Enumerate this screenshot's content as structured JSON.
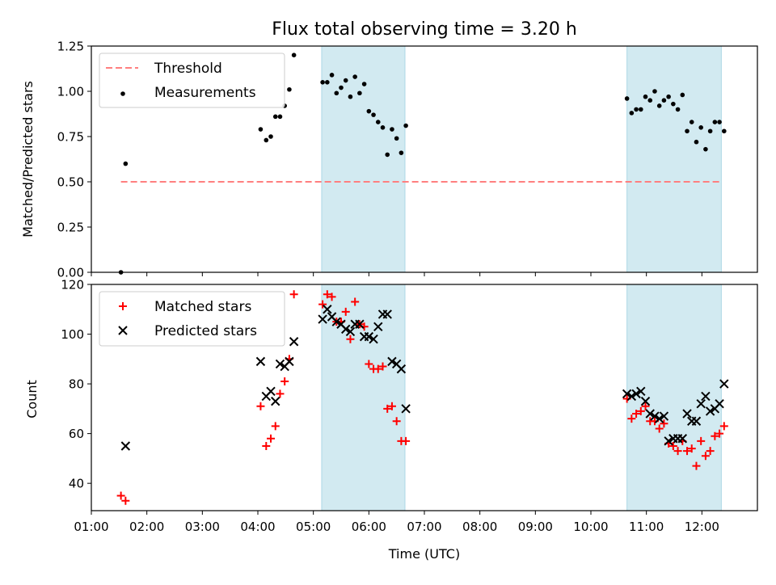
{
  "figure": {
    "title": "Flux total observing time = 3.20 h",
    "xlabel": "Time (UTC)"
  },
  "chart_data": [
    {
      "type": "scatter",
      "panel": "top",
      "title": "Flux total observing time = 3.20 h",
      "xlabel": "",
      "ylabel": "Matched/Predicted stars",
      "xlim": [
        "01:00",
        "13:00"
      ],
      "ylim": [
        0,
        1.25
      ],
      "yticks": [
        "0.00",
        "0.25",
        "0.50",
        "0.75",
        "1.00",
        "1.25"
      ],
      "xticks": [
        "01:00",
        "02:00",
        "03:00",
        "04:00",
        "05:00",
        "06:00",
        "07:00",
        "08:00",
        "09:00",
        "10:00",
        "11:00",
        "12:00"
      ],
      "shaded_intervals": [
        [
          "05:09",
          "06:39"
        ],
        [
          "10:39",
          "12:21"
        ]
      ],
      "shade_color": "#add8e6",
      "legend_position": "upper left",
      "threshold": {
        "name": "Threshold",
        "value": 0.5,
        "x_range": [
          "01:32",
          "12:22"
        ],
        "color": "#ff7f7f",
        "style": "dashed"
      },
      "series": [
        {
          "name": "Measurements",
          "marker": "dot",
          "color": "#000000",
          "points": [
            [
              "01:32",
              0.0
            ],
            [
              "01:37",
              0.6
            ],
            [
              "04:03",
              0.79
            ],
            [
              "04:09",
              0.73
            ],
            [
              "04:14",
              0.75
            ],
            [
              "04:19",
              0.86
            ],
            [
              "04:24",
              0.86
            ],
            [
              "04:29",
              0.92
            ],
            [
              "04:34",
              1.01
            ],
            [
              "04:39",
              1.2
            ],
            [
              "05:10",
              1.05
            ],
            [
              "05:15",
              1.05
            ],
            [
              "05:20",
              1.09
            ],
            [
              "05:25",
              0.99
            ],
            [
              "05:30",
              1.02
            ],
            [
              "05:35",
              1.06
            ],
            [
              "05:40",
              0.97
            ],
            [
              "05:45",
              1.08
            ],
            [
              "05:50",
              0.99
            ],
            [
              "05:55",
              1.04
            ],
            [
              "06:00",
              0.89
            ],
            [
              "06:05",
              0.87
            ],
            [
              "06:10",
              0.83
            ],
            [
              "06:15",
              0.8
            ],
            [
              "06:20",
              0.65
            ],
            [
              "06:25",
              0.79
            ],
            [
              "06:30",
              0.74
            ],
            [
              "06:35",
              0.66
            ],
            [
              "06:40",
              0.81
            ],
            [
              "10:39",
              0.96
            ],
            [
              "10:44",
              0.88
            ],
            [
              "10:49",
              0.9
            ],
            [
              "10:54",
              0.9
            ],
            [
              "10:59",
              0.97
            ],
            [
              "11:04",
              0.95
            ],
            [
              "11:09",
              1.0
            ],
            [
              "11:14",
              0.92
            ],
            [
              "11:19",
              0.95
            ],
            [
              "11:24",
              0.97
            ],
            [
              "11:29",
              0.93
            ],
            [
              "11:34",
              0.9
            ],
            [
              "11:39",
              0.98
            ],
            [
              "11:44",
              0.78
            ],
            [
              "11:49",
              0.83
            ],
            [
              "11:54",
              0.72
            ],
            [
              "11:59",
              0.8
            ],
            [
              "12:04",
              0.68
            ],
            [
              "12:09",
              0.78
            ],
            [
              "12:14",
              0.83
            ],
            [
              "12:19",
              0.83
            ],
            [
              "12:24",
              0.78
            ]
          ]
        }
      ]
    },
    {
      "type": "scatter",
      "panel": "bottom",
      "xlabel": "Time (UTC)",
      "ylabel": "Count",
      "xlim": [
        "01:00",
        "13:00"
      ],
      "ylim": [
        29,
        120
      ],
      "yticks": [
        "40",
        "60",
        "80",
        "100",
        "120"
      ],
      "xticks": [
        "01:00",
        "02:00",
        "03:00",
        "04:00",
        "05:00",
        "06:00",
        "07:00",
        "08:00",
        "09:00",
        "10:00",
        "11:00",
        "12:00"
      ],
      "shaded_intervals": [
        [
          "05:09",
          "06:39"
        ],
        [
          "10:39",
          "12:21"
        ]
      ],
      "shade_color": "#add8e6",
      "legend_position": "upper left",
      "series": [
        {
          "name": "Matched stars",
          "marker": "plus",
          "color": "#ff0000",
          "points": [
            [
              "01:32",
              35
            ],
            [
              "01:37",
              33
            ],
            [
              "04:03",
              71
            ],
            [
              "04:09",
              55
            ],
            [
              "04:14",
              58
            ],
            [
              "04:19",
              63
            ],
            [
              "04:24",
              76
            ],
            [
              "04:29",
              81
            ],
            [
              "04:34",
              90
            ],
            [
              "04:39",
              116
            ],
            [
              "05:10",
              112
            ],
            [
              "05:15",
              116
            ],
            [
              "05:20",
              115
            ],
            [
              "05:25",
              105
            ],
            [
              "05:30",
              105
            ],
            [
              "05:35",
              109
            ],
            [
              "05:40",
              98
            ],
            [
              "05:45",
              113
            ],
            [
              "05:50",
              104
            ],
            [
              "05:55",
              103
            ],
            [
              "06:00",
              88
            ],
            [
              "06:05",
              86
            ],
            [
              "06:10",
              86
            ],
            [
              "06:15",
              87
            ],
            [
              "06:20",
              70
            ],
            [
              "06:25",
              71
            ],
            [
              "06:30",
              65
            ],
            [
              "06:35",
              57
            ],
            [
              "06:40",
              57
            ],
            [
              "10:39",
              74
            ],
            [
              "10:44",
              66
            ],
            [
              "10:49",
              68
            ],
            [
              "10:54",
              69
            ],
            [
              "10:59",
              71
            ],
            [
              "11:04",
              65
            ],
            [
              "11:09",
              65
            ],
            [
              "11:14",
              62
            ],
            [
              "11:19",
              64
            ],
            [
              "11:24",
              56
            ],
            [
              "11:29",
              55
            ],
            [
              "11:34",
              53
            ],
            [
              "11:39",
              57
            ],
            [
              "11:44",
              53
            ],
            [
              "11:49",
              54
            ],
            [
              "11:54",
              47
            ],
            [
              "11:59",
              57
            ],
            [
              "12:04",
              51
            ],
            [
              "12:09",
              53
            ],
            [
              "12:14",
              59
            ],
            [
              "12:19",
              60
            ],
            [
              "12:24",
              63
            ]
          ]
        },
        {
          "name": "Predicted stars",
          "marker": "x",
          "color": "#000000",
          "points": [
            [
              "01:37",
              55
            ],
            [
              "04:03",
              89
            ],
            [
              "04:09",
              75
            ],
            [
              "04:14",
              77
            ],
            [
              "04:19",
              73
            ],
            [
              "04:24",
              88
            ],
            [
              "04:29",
              87
            ],
            [
              "04:34",
              89
            ],
            [
              "04:39",
              97
            ],
            [
              "05:10",
              106
            ],
            [
              "05:15",
              110
            ],
            [
              "05:20",
              107
            ],
            [
              "05:25",
              105
            ],
            [
              "05:30",
              104
            ],
            [
              "05:35",
              102
            ],
            [
              "05:40",
              101
            ],
            [
              "05:45",
              104
            ],
            [
              "05:50",
              104
            ],
            [
              "05:55",
              99
            ],
            [
              "06:00",
              99
            ],
            [
              "06:05",
              98
            ],
            [
              "06:10",
              103
            ],
            [
              "06:15",
              108
            ],
            [
              "06:20",
              108
            ],
            [
              "06:25",
              89
            ],
            [
              "06:30",
              88
            ],
            [
              "06:35",
              86
            ],
            [
              "06:40",
              70
            ],
            [
              "10:39",
              76
            ],
            [
              "10:44",
              75
            ],
            [
              "10:49",
              76
            ],
            [
              "10:54",
              77
            ],
            [
              "10:59",
              73
            ],
            [
              "11:04",
              68
            ],
            [
              "11:09",
              67
            ],
            [
              "11:14",
              66
            ],
            [
              "11:19",
              67
            ],
            [
              "11:24",
              57
            ],
            [
              "11:29",
              58
            ],
            [
              "11:34",
              58
            ],
            [
              "11:39",
              58
            ],
            [
              "11:44",
              68
            ],
            [
              "11:49",
              65
            ],
            [
              "11:54",
              65
            ],
            [
              "11:59",
              72
            ],
            [
              "12:04",
              75
            ],
            [
              "12:09",
              69
            ],
            [
              "12:14",
              70
            ],
            [
              "12:19",
              72
            ],
            [
              "12:24",
              80
            ]
          ]
        }
      ]
    }
  ]
}
